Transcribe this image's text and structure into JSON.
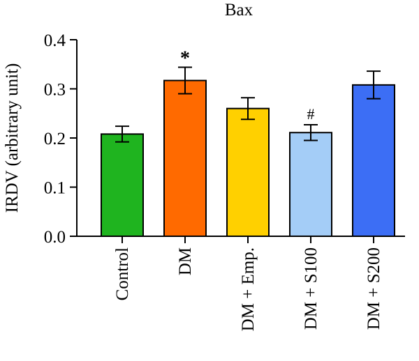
{
  "chart_data": {
    "type": "bar",
    "title": "Bax",
    "xlabel": "",
    "ylabel": "IRDV (arbitrary unit)",
    "ylim": [
      0,
      0.4
    ],
    "yticks": [
      "0.0",
      "0.1",
      "0.2",
      "0.3",
      "0.4"
    ],
    "grid": false,
    "categories": [
      "Control",
      "DM",
      "DM + Emp.",
      "DM + S100",
      "DM + S200"
    ],
    "values": [
      0.208,
      0.317,
      0.26,
      0.211,
      0.308
    ],
    "errors": [
      0.016,
      0.027,
      0.022,
      0.016,
      0.028
    ],
    "colors": [
      "#1fb41f",
      "#ff6a00",
      "#ffd000",
      "#a4cdf7",
      "#3c6ef5"
    ],
    "annotations": [
      "",
      "*",
      "",
      "#",
      ""
    ]
  }
}
